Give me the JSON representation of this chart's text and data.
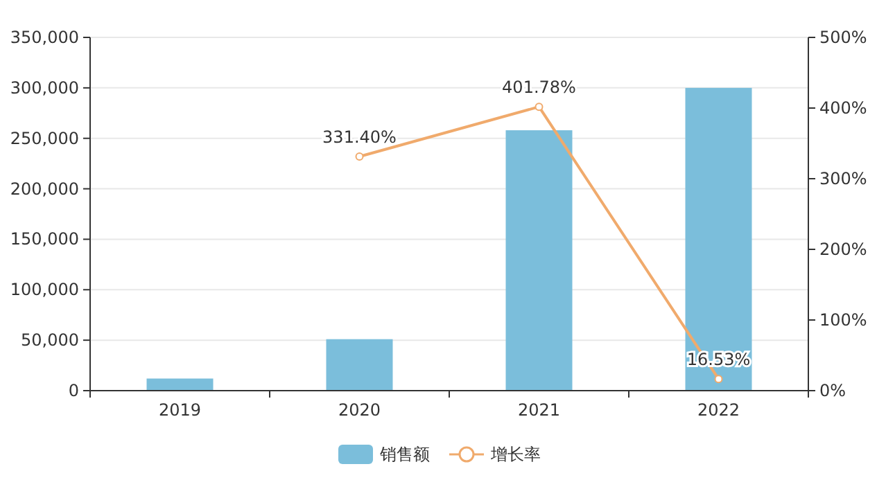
{
  "chart_data": {
    "type": "bar",
    "categories": [
      "2019",
      "2020",
      "2021",
      "2022"
    ],
    "series": [
      {
        "name": "销售额",
        "color": "#7bbedb",
        "values": [
          12000,
          51000,
          258000,
          300000
        ]
      },
      {
        "name": "增长率",
        "type": "line",
        "axis": "y2",
        "color": "#f0aa6c",
        "marker": "circle",
        "values": [
          null,
          331.4,
          401.78,
          16.53
        ],
        "value_labels": [
          null,
          "331.40%",
          "401.78%",
          "16.53%"
        ]
      }
    ],
    "ylim": [
      0,
      350000
    ],
    "yticks": [
      {
        "value": 0,
        "label": "0"
      },
      {
        "value": 50000,
        "label": "50,000"
      },
      {
        "value": 100000,
        "label": "100,000"
      },
      {
        "value": 150000,
        "label": "150,000"
      },
      {
        "value": 200000,
        "label": "200,000"
      },
      {
        "value": 250000,
        "label": "250,000"
      },
      {
        "value": 300000,
        "label": "300,000"
      },
      {
        "value": 350000,
        "label": "350,000"
      }
    ],
    "y2lim": [
      0,
      500
    ],
    "y2ticks": [
      {
        "value": 0,
        "label": "0%"
      },
      {
        "value": 100,
        "label": "100%"
      },
      {
        "value": 200,
        "label": "200%"
      },
      {
        "value": 300,
        "label": "300%"
      },
      {
        "value": 400,
        "label": "400%"
      },
      {
        "value": 500,
        "label": "500%"
      }
    ],
    "grid": "y",
    "legend": "bottom"
  }
}
